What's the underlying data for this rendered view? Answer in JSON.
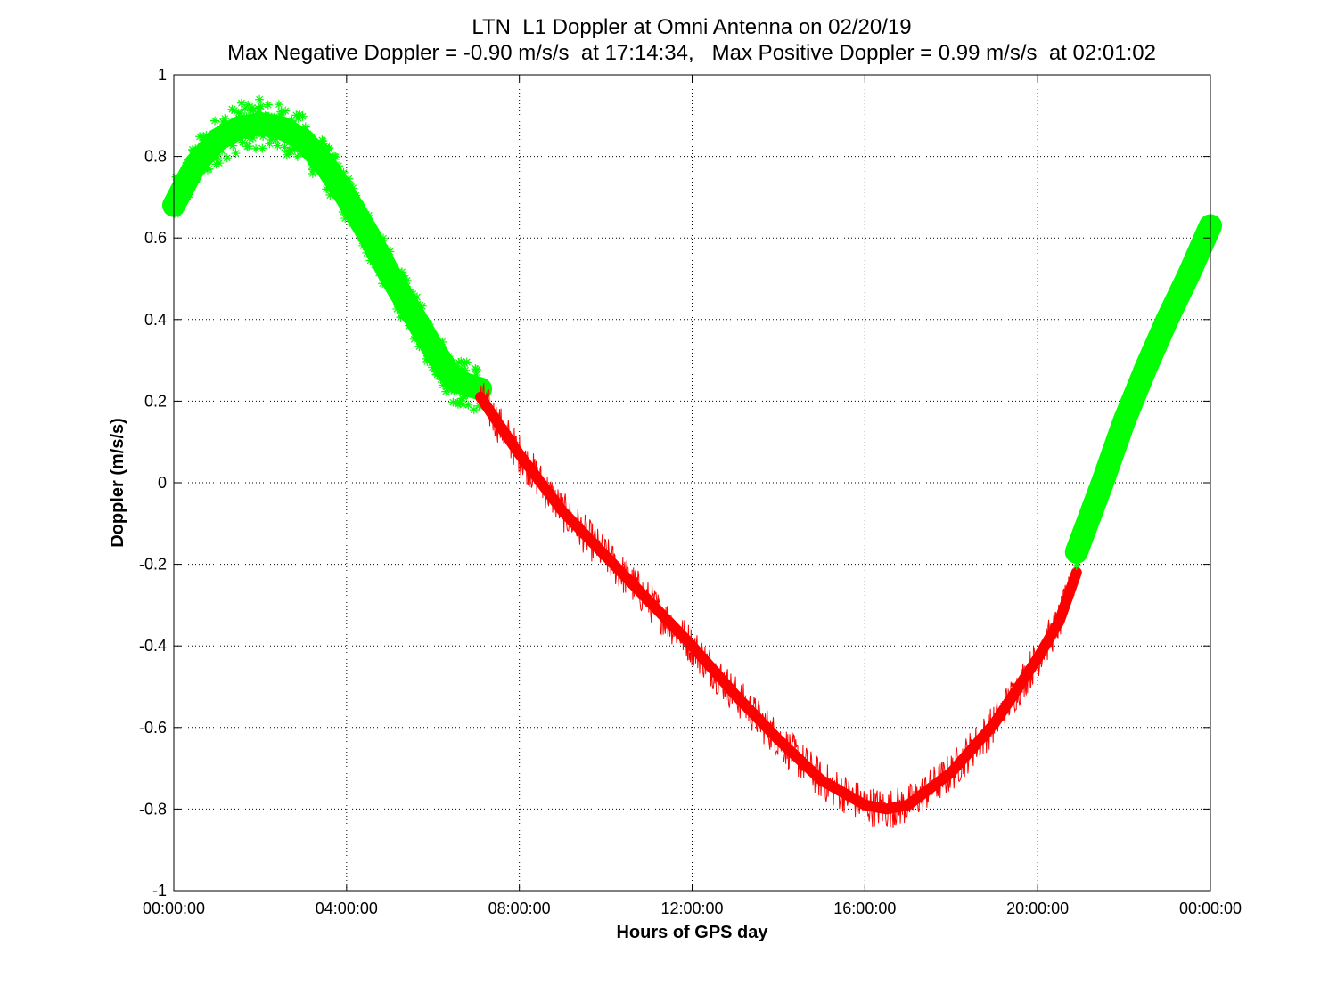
{
  "chart_data": {
    "type": "scatter",
    "title": "LTN  L1 Doppler at Omni Antenna on 02/20/19",
    "subtitle": "Max Negative Doppler = -0.90 m/s/s  at 17:14:34,   Max Positive Doppler = 0.99 m/s/s  at 02:01:02",
    "xlabel": "Hours of GPS day",
    "ylabel": "Doppler (m/s/s)",
    "xlim": [
      0,
      24
    ],
    "ylim": [
      -1,
      1
    ],
    "grid": true,
    "x_ticks": [
      0,
      4,
      8,
      12,
      16,
      20,
      24
    ],
    "x_tick_labels": [
      "00:00:00",
      "04:00:00",
      "08:00:00",
      "12:00:00",
      "16:00:00",
      "20:00:00",
      "00:00:00"
    ],
    "y_ticks": [
      -1,
      -0.8,
      -0.6,
      -0.4,
      -0.2,
      0,
      0.2,
      0.4,
      0.6,
      0.8,
      1
    ],
    "y_tick_labels": [
      "-1",
      "-0.8",
      "-0.6",
      "-0.4",
      "-0.2",
      "0",
      "0.2",
      "0.4",
      "0.6",
      "0.8",
      "1"
    ],
    "series": [
      {
        "color": "#00ff00",
        "marker": "asterisk",
        "spread": 0.06,
        "x": [
          0,
          0.5,
          1,
          1.5,
          2,
          2.5,
          3,
          3.5,
          4,
          4.5,
          5,
          5.5,
          6,
          6.5,
          7.1
        ],
        "y": [
          0.68,
          0.78,
          0.84,
          0.87,
          0.88,
          0.87,
          0.84,
          0.78,
          0.7,
          0.61,
          0.51,
          0.42,
          0.33,
          0.25,
          0.23
        ]
      },
      {
        "color": "#ff0000",
        "marker": "line",
        "spread": 0.05,
        "x": [
          7.1,
          8,
          9,
          10,
          11,
          12,
          13,
          14,
          15,
          16,
          16.5,
          17,
          18,
          19,
          20,
          20.5,
          20.9
        ],
        "y": [
          0.21,
          0.07,
          -0.07,
          -0.18,
          -0.29,
          -0.4,
          -0.52,
          -0.63,
          -0.73,
          -0.79,
          -0.8,
          -0.79,
          -0.71,
          -0.59,
          -0.43,
          -0.34,
          -0.22
        ]
      },
      {
        "color": "#00ff00",
        "marker": "asterisk",
        "spread": 0.04,
        "x": [
          20.9,
          21.5,
          22,
          22.5,
          23,
          23.5,
          24
        ],
        "y": [
          -0.17,
          0.0,
          0.15,
          0.28,
          0.4,
          0.51,
          0.63
        ]
      }
    ]
  }
}
